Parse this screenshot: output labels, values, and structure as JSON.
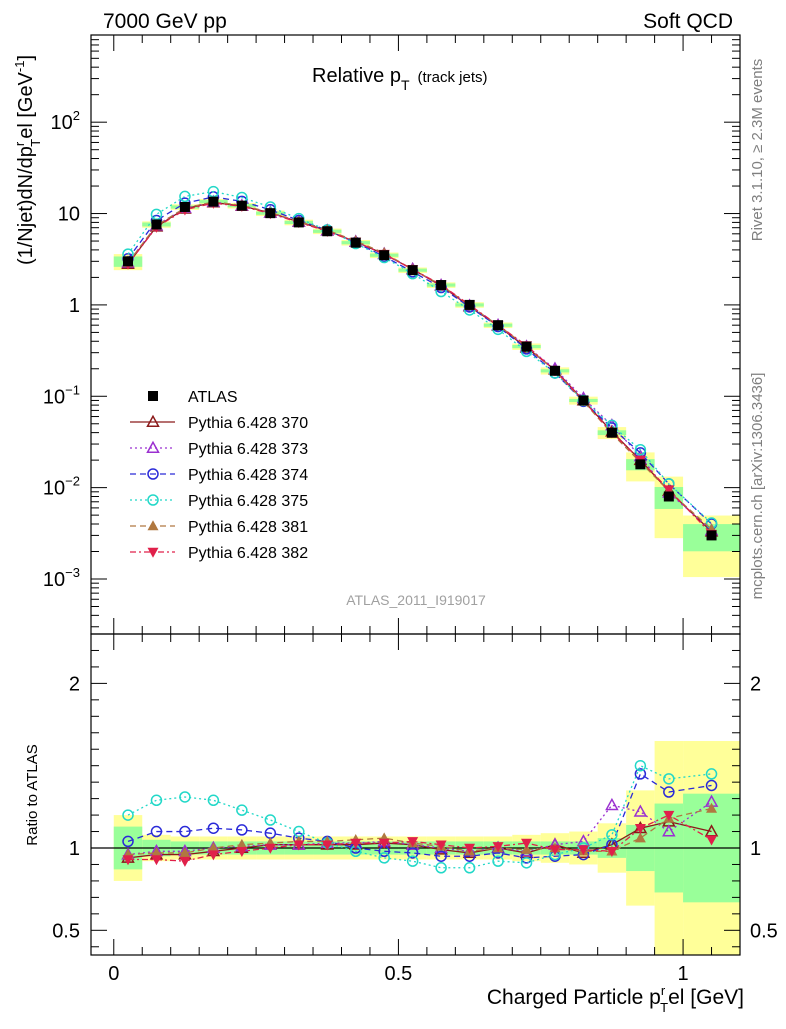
{
  "header": {
    "left": "7000 GeV pp",
    "right": "Soft QCD"
  },
  "side_labels": {
    "rivet": "Rivet 3.1.10, ≥ 2.3M events",
    "mcplots": "mcplots.cern.ch [arXiv:1306.3436]"
  },
  "analysis_id": "ATLAS_2011_I919017",
  "chart_data": {
    "type": "scatter",
    "title_main": "Relative p",
    "title_sub": "T",
    "title_suffix": "(track jets)",
    "ylabel_main": "(1/Njet)dN/dp",
    "ylabel_sup": "r",
    "ylabel_sub": "T",
    "ylabel_end": "el [GeV",
    "ylabel_exp": "-1",
    "ylabel_close": "]",
    "ratio_ylabel": "Ratio to ATLAS",
    "xlabel_main": "Charged Particle p",
    "xlabel_sup": "r",
    "xlabel_sub": "T",
    "xlabel_end": "el [GeV]",
    "xlim": [
      -0.04,
      1.1
    ],
    "ylim_main": [
      0.00025,
      900
    ],
    "ylim_ratio": [
      0.35,
      2.3
    ],
    "y_scale_main": "log",
    "x_ticks": [
      "0",
      "0.5",
      "1"
    ],
    "y_ticks_main": [
      {
        "base": "10",
        "exp": "2"
      },
      {
        "base": "10",
        "exp": ""
      },
      {
        "base": "1",
        "exp": ""
      },
      {
        "base": "10",
        "exp": "−1"
      },
      {
        "base": "10",
        "exp": "−2"
      },
      {
        "base": "10",
        "exp": "−3"
      }
    ],
    "y_ticks_ratio": [
      "2",
      "1",
      "0.5"
    ],
    "legend_position": "middle-left",
    "x": [
      0.025,
      0.075,
      0.125,
      0.175,
      0.225,
      0.275,
      0.325,
      0.375,
      0.425,
      0.475,
      0.525,
      0.575,
      0.625,
      0.675,
      0.725,
      0.775,
      0.825,
      0.875,
      0.925,
      0.975,
      1.05
    ],
    "bin_edges": [
      0.0,
      0.05,
      0.1,
      0.15,
      0.2,
      0.25,
      0.3,
      0.35,
      0.4,
      0.45,
      0.5,
      0.55,
      0.6,
      0.65,
      0.7,
      0.75,
      0.8,
      0.85,
      0.9,
      0.95,
      1.0,
      1.1
    ],
    "data": {
      "name": "ATLAS",
      "values": [
        3.0,
        7.6,
        11.8,
        13.5,
        12.2,
        10.1,
        8.0,
        6.4,
        4.8,
        3.5,
        2.4,
        1.65,
        1.0,
        0.6,
        0.35,
        0.19,
        0.09,
        0.04,
        0.018,
        0.008,
        0.003
      ],
      "band_inner": [
        0.13,
        0.05,
        0.04,
        0.04,
        0.04,
        0.04,
        0.04,
        0.04,
        0.04,
        0.04,
        0.04,
        0.04,
        0.04,
        0.04,
        0.04,
        0.04,
        0.04,
        0.06,
        0.14,
        0.27,
        0.33
      ],
      "band_outer": [
        0.2,
        0.08,
        0.07,
        0.07,
        0.07,
        0.07,
        0.07,
        0.07,
        0.07,
        0.07,
        0.07,
        0.07,
        0.07,
        0.07,
        0.08,
        0.09,
        0.1,
        0.15,
        0.35,
        0.65,
        0.65
      ],
      "color": "#000000"
    },
    "series": [
      {
        "name": "Pythia 6.428 370",
        "color": "#8b1a1a",
        "marker": "triangle-open",
        "dash": "",
        "values": [
          2.8,
          7.2,
          11.3,
          13.2,
          12.1,
          10.2,
          8.1,
          6.5,
          4.9,
          3.6,
          2.45,
          1.62,
          0.96,
          0.59,
          0.34,
          0.195,
          0.09,
          0.041,
          0.02,
          0.0092,
          0.0033
        ],
        "ratio": [
          0.94,
          0.96,
          0.96,
          0.98,
          1.0,
          1.02,
          1.02,
          1.02,
          1.02,
          1.03,
          1.02,
          0.99,
          0.97,
          1.0,
          0.97,
          1.02,
          0.97,
          1.02,
          1.12,
          1.16,
          1.1
        ]
      },
      {
        "name": "Pythia 6.428 373",
        "color": "#9b30d0",
        "marker": "triangle-open",
        "dash": "2,3",
        "values": [
          2.9,
          7.4,
          11.5,
          13.4,
          12.2,
          10.2,
          8.1,
          6.5,
          4.9,
          3.6,
          2.45,
          1.64,
          0.98,
          0.6,
          0.35,
          0.2,
          0.095,
          0.048,
          0.022,
          0.0088,
          0.0034
        ],
        "ratio": [
          0.96,
          0.98,
          0.98,
          1.0,
          1.01,
          1.02,
          1.02,
          1.03,
          1.03,
          1.04,
          1.02,
          1.0,
          0.98,
          1.0,
          0.98,
          1.02,
          1.04,
          1.26,
          1.22,
          1.1,
          1.28
        ]
      },
      {
        "name": "Pythia 6.428 374",
        "color": "#2a2ad8",
        "marker": "circle-open",
        "dash": "6,4",
        "values": [
          3.2,
          8.4,
          13.0,
          15.2,
          13.6,
          11.0,
          8.4,
          6.6,
          4.8,
          3.4,
          2.3,
          1.55,
          0.95,
          0.58,
          0.33,
          0.18,
          0.088,
          0.045,
          0.024,
          0.011,
          0.004
        ],
        "ratio": [
          1.04,
          1.1,
          1.1,
          1.12,
          1.11,
          1.09,
          1.06,
          1.04,
          1.0,
          0.98,
          0.97,
          0.95,
          0.95,
          0.97,
          0.94,
          0.95,
          0.96,
          1.02,
          1.45,
          1.34,
          1.38
        ]
      },
      {
        "name": "Pythia 6.428 375",
        "color": "#22d8c8",
        "marker": "circle-open",
        "dash": "2,3",
        "values": [
          3.6,
          9.8,
          15.4,
          17.4,
          15.0,
          11.8,
          8.8,
          6.6,
          4.7,
          3.3,
          2.2,
          1.4,
          0.88,
          0.54,
          0.31,
          0.18,
          0.09,
          0.048,
          0.026,
          0.011,
          0.0041
        ],
        "ratio": [
          1.2,
          1.29,
          1.31,
          1.29,
          1.23,
          1.17,
          1.1,
          1.03,
          0.98,
          0.94,
          0.92,
          0.88,
          0.88,
          0.92,
          0.91,
          0.96,
          1.0,
          1.08,
          1.5,
          1.42,
          1.45
        ]
      },
      {
        "name": "Pythia 6.428 381",
        "color": "#b07840",
        "marker": "triangle-filled",
        "dash": "6,4",
        "values": [
          2.9,
          7.4,
          11.5,
          13.4,
          12.3,
          10.3,
          8.2,
          6.6,
          5.0,
          3.7,
          2.45,
          1.65,
          0.98,
          0.6,
          0.35,
          0.19,
          0.088,
          0.039,
          0.019,
          0.0092,
          0.0035
        ],
        "ratio": [
          0.96,
          0.97,
          0.97,
          1.0,
          1.02,
          1.03,
          1.04,
          1.04,
          1.05,
          1.06,
          1.03,
          1.01,
          0.98,
          1.0,
          0.99,
          1.0,
          0.98,
          0.98,
          1.06,
          1.18,
          1.24
        ]
      },
      {
        "name": "Pythia 6.428 382",
        "color": "#e0204a",
        "marker": "triangle-down-filled",
        "dash": "6,3,2,3",
        "values": [
          2.8,
          7.1,
          11.0,
          13.0,
          12.0,
          10.0,
          8.0,
          6.4,
          4.9,
          3.6,
          2.45,
          1.66,
          1.0,
          0.6,
          0.36,
          0.19,
          0.09,
          0.04,
          0.02,
          0.0095,
          0.0031
        ],
        "ratio": [
          0.93,
          0.93,
          0.92,
          0.96,
          0.98,
          1.0,
          1.02,
          1.02,
          1.03,
          1.03,
          1.04,
          1.02,
          1.0,
          1.01,
          1.03,
          0.99,
          0.99,
          0.98,
          1.12,
          1.2,
          1.05
        ]
      }
    ]
  }
}
